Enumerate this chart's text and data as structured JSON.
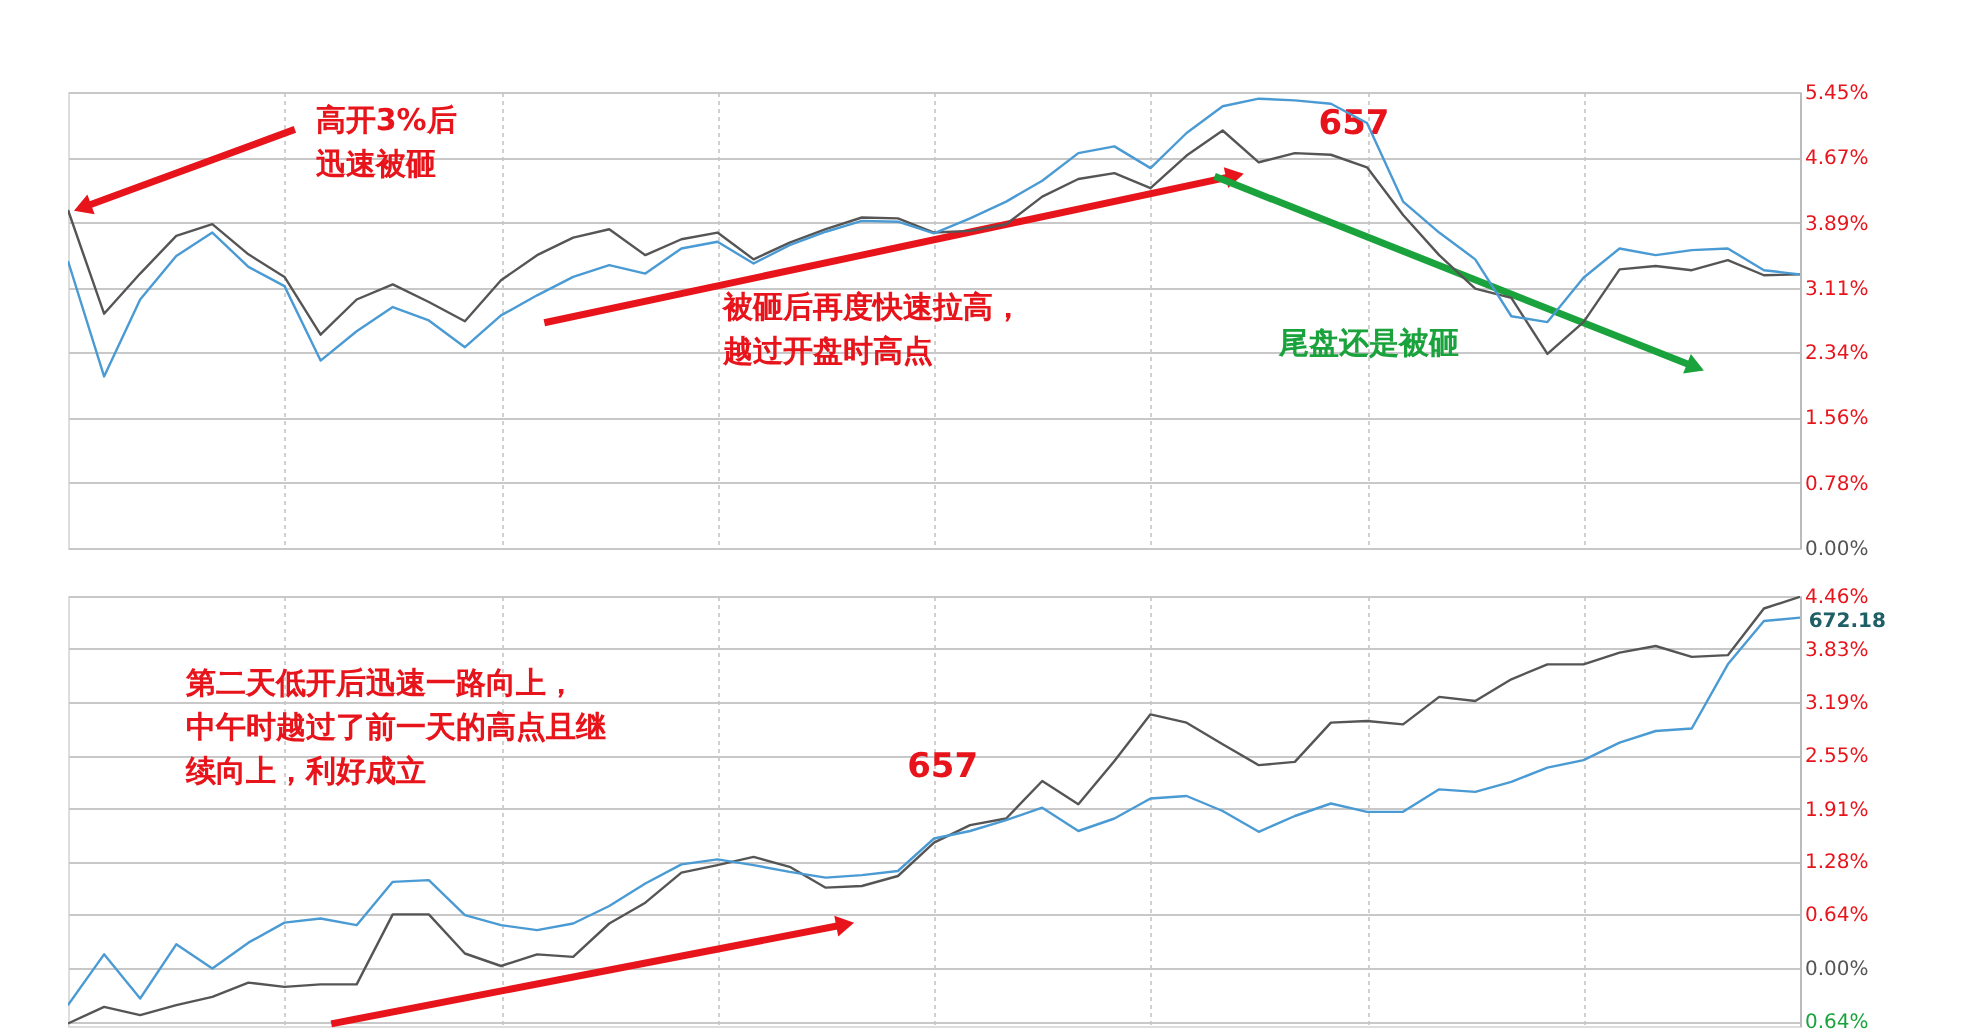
{
  "chart_data": [
    {
      "type": "line",
      "categories": [
        null,
        null,
        null,
        null,
        null,
        null,
        null,
        null,
        null,
        null,
        null,
        null,
        null,
        null,
        null,
        null,
        null,
        null,
        null,
        null,
        null,
        null,
        null,
        null,
        null,
        null,
        null,
        null,
        null,
        null,
        null,
        null,
        null,
        null,
        null,
        null,
        null,
        null,
        null,
        null,
        null,
        null,
        null,
        null,
        null,
        null,
        null,
        null,
        null
      ],
      "ylim": [
        0,
        5.45
      ],
      "yticks": [
        {
          "value": 0,
          "label": "0.00%"
        },
        {
          "value": 0.78,
          "label": "0.78%"
        },
        {
          "value": 1.56,
          "label": "1.56%"
        },
        {
          "value": 2.34,
          "label": "2.34%"
        },
        {
          "value": 3.11,
          "label": "3.11%"
        },
        {
          "value": 3.89,
          "label": "3.89%"
        },
        {
          "value": 4.67,
          "label": "4.67%"
        },
        {
          "value": 5.45,
          "label": "5.45%"
        }
      ],
      "grid": true,
      "tick_labels": "y",
      "series": [
        {
          "color": "#555555",
          "values": [
            4.04,
            2.8,
            3.28,
            3.73,
            3.87,
            3.51,
            3.24,
            2.55,
            2.97,
            3.15,
            2.94,
            2.71,
            3.2,
            3.5,
            3.71,
            3.81,
            3.5,
            3.69,
            3.77,
            3.45,
            3.65,
            3.81,
            3.95,
            3.94,
            3.77,
            3.79,
            3.87,
            4.2,
            4.41,
            4.48,
            4.3,
            4.69,
            4.99,
            4.61,
            4.72,
            4.7,
            4.55,
            3.98,
            3.5,
            3.1,
            2.99,
            2.32,
            2.7,
            3.33,
            3.37,
            3.32,
            3.44,
            3.26,
            3.27
          ]
        },
        {
          "color": "#4a9ad4",
          "values": [
            3.43,
            2.05,
            2.97,
            3.49,
            3.77,
            3.36,
            3.13,
            2.24,
            2.59,
            2.88,
            2.72,
            2.4,
            2.78,
            3.02,
            3.24,
            3.38,
            3.28,
            3.58,
            3.66,
            3.4,
            3.62,
            3.78,
            3.91,
            3.9,
            3.76,
            3.94,
            4.14,
            4.39,
            4.72,
            4.8,
            4.54,
            4.96,
            5.28,
            5.37,
            5.35,
            5.31,
            5.08,
            4.14,
            3.77,
            3.45,
            2.77,
            2.7,
            3.23,
            3.58,
            3.5,
            3.56,
            3.58,
            3.32,
            3.27
          ]
        }
      ],
      "annotations": [
        "高开3%后迅速被砸",
        "被砸后再度快速拉高，越过开盘时高点",
        "657",
        "尾盘还是被砸"
      ]
    },
    {
      "type": "line",
      "categories": [
        null,
        null,
        null,
        null,
        null,
        null,
        null,
        null,
        null,
        null,
        null,
        null,
        null,
        null,
        null,
        null,
        null,
        null,
        null,
        null,
        null,
        null,
        null,
        null,
        null,
        null,
        null,
        null,
        null,
        null,
        null,
        null,
        null,
        null,
        null,
        null,
        null,
        null,
        null,
        null,
        null,
        null,
        null,
        null,
        null,
        null,
        null,
        null,
        null
      ],
      "ylim": [
        -0.7,
        4.46
      ],
      "yticks": [
        {
          "value": -0.64,
          "label": "0.64%"
        },
        {
          "value": 0,
          "label": "0.00%"
        },
        {
          "value": 0.64,
          "label": "0.64%"
        },
        {
          "value": 1.28,
          "label": "1.28%"
        },
        {
          "value": 1.91,
          "label": "1.91%"
        },
        {
          "value": 2.55,
          "label": "2.55%"
        },
        {
          "value": 3.19,
          "label": "3.19%"
        },
        {
          "value": 3.83,
          "label": "3.83%"
        },
        {
          "value": 4.46,
          "label": "4.46%"
        }
      ],
      "grid": true,
      "tick_labels": "y",
      "series": [
        {
          "color": "#555555",
          "values": [
            -0.67,
            -0.47,
            -0.57,
            -0.45,
            -0.35,
            -0.18,
            -0.23,
            -0.2,
            -0.2,
            0.64,
            0.64,
            0.17,
            0.02,
            0.16,
            0.13,
            0.53,
            0.78,
            1.14,
            1.23,
            1.33,
            1.21,
            0.96,
            0.98,
            1.1,
            1.5,
            1.71,
            1.79,
            2.24,
            1.96,
            2.48,
            3.04,
            2.94,
            2.68,
            2.43,
            2.47,
            2.94,
            2.96,
            2.92,
            3.25,
            3.2,
            3.46,
            3.64,
            3.64,
            3.78,
            3.86,
            3.73,
            3.75,
            4.31,
            4.45
          ]
        },
        {
          "color": "#4a9ad4",
          "values": [
            -0.45,
            0.16,
            -0.37,
            0.28,
            -0.01,
            0.3,
            0.54,
            0.59,
            0.51,
            1.03,
            1.05,
            0.63,
            0.51,
            0.45,
            0.53,
            0.74,
            1.01,
            1.24,
            1.3,
            1.23,
            1.15,
            1.08,
            1.11,
            1.16,
            1.55,
            1.64,
            1.77,
            1.92,
            1.64,
            1.79,
            2.03,
            2.06,
            1.88,
            1.63,
            1.82,
            1.97,
            1.87,
            1.87,
            2.14,
            2.11,
            2.23,
            2.4,
            2.49,
            2.7,
            2.84,
            2.87,
            3.64,
            4.16,
            4.2
          ]
        }
      ],
      "annotations": [
        "第二天低开后迅速一路向上，中午时越过了前一天的高点且继续向上，利好成立",
        "657",
        "672.18"
      ]
    }
  ]
}
